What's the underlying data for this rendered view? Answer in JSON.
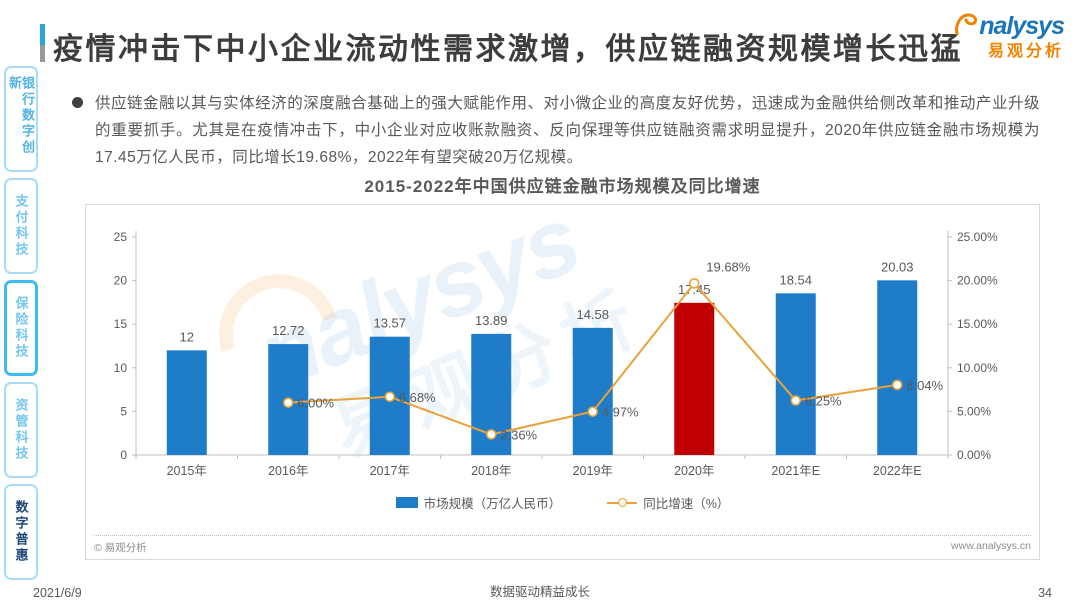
{
  "page": {
    "title": "疫情冲击下中小企业流动性需求激增，供应链融资规模增长迅猛"
  },
  "logo": {
    "en": "nalysys",
    "cn": "易观分析"
  },
  "watermark": {
    "en": "nalysys",
    "cn": "易观分析"
  },
  "sidebar": {
    "items": [
      {
        "label": "银行数字创新"
      },
      {
        "label": "支付科技"
      },
      {
        "label": "保险科技"
      },
      {
        "label": "资管科技"
      },
      {
        "label": "数字普惠"
      }
    ]
  },
  "bullet": {
    "text": "供应链金融以其与实体经济的深度融合基础上的强大赋能作用、对小微企业的高度友好优势，迅速成为金融供给侧改革和推动产业升级的重要抓手。尤其是在疫情冲击下，中小企业对应收账款融资、反向保理等供应链融资需求明显提升，2020年供应链金融市场规模为17.45万亿人民币，同比增长19.68%，2022年有望突破20万亿规模。"
  },
  "chart_data": {
    "type": "bar",
    "title": "2015-2022年中国供应链金融市场规模及同比增速",
    "categories": [
      "2015年",
      "2016年",
      "2017年",
      "2018年",
      "2019年",
      "2020年",
      "2021年E",
      "2022年E"
    ],
    "series": [
      {
        "name": "市场规模（万亿人民币）",
        "type": "bar",
        "values": [
          12,
          12.72,
          13.57,
          13.89,
          14.58,
          17.45,
          18.54,
          20.03
        ],
        "labels": [
          "12",
          "12.72",
          "13.57",
          "13.89",
          "14.58",
          "17.45",
          "18.54",
          "20.03"
        ],
        "color": "#1E7CC8",
        "highlight_index": 5,
        "highlight_color": "#C00000"
      },
      {
        "name": "同比增速（%）",
        "type": "line",
        "values": [
          null,
          6.0,
          6.68,
          2.36,
          4.97,
          19.68,
          6.25,
          8.04
        ],
        "labels": [
          null,
          "6.00%",
          "6.68%",
          "2.36%",
          "4.97%",
          "19.68%",
          "6.25%",
          "8.04%"
        ],
        "color": "#E9A13B"
      }
    ],
    "left_axis": {
      "min": 0,
      "max": 25,
      "ticks": [
        "0",
        "5",
        "10",
        "15",
        "20",
        "25"
      ]
    },
    "right_axis": {
      "min": 0,
      "max": 25,
      "ticks": [
        "0.00%",
        "5.00%",
        "10.00%",
        "15.00%",
        "20.00%",
        "25.00%"
      ]
    },
    "legend_position": "bottom",
    "grid": false
  },
  "chart_footer": {
    "copyright": "© 易观分析",
    "website": "www.analysys.cn"
  },
  "footer": {
    "date": "2021/6/9",
    "slogan": "数据驱动精益成长",
    "page_number": "34"
  }
}
